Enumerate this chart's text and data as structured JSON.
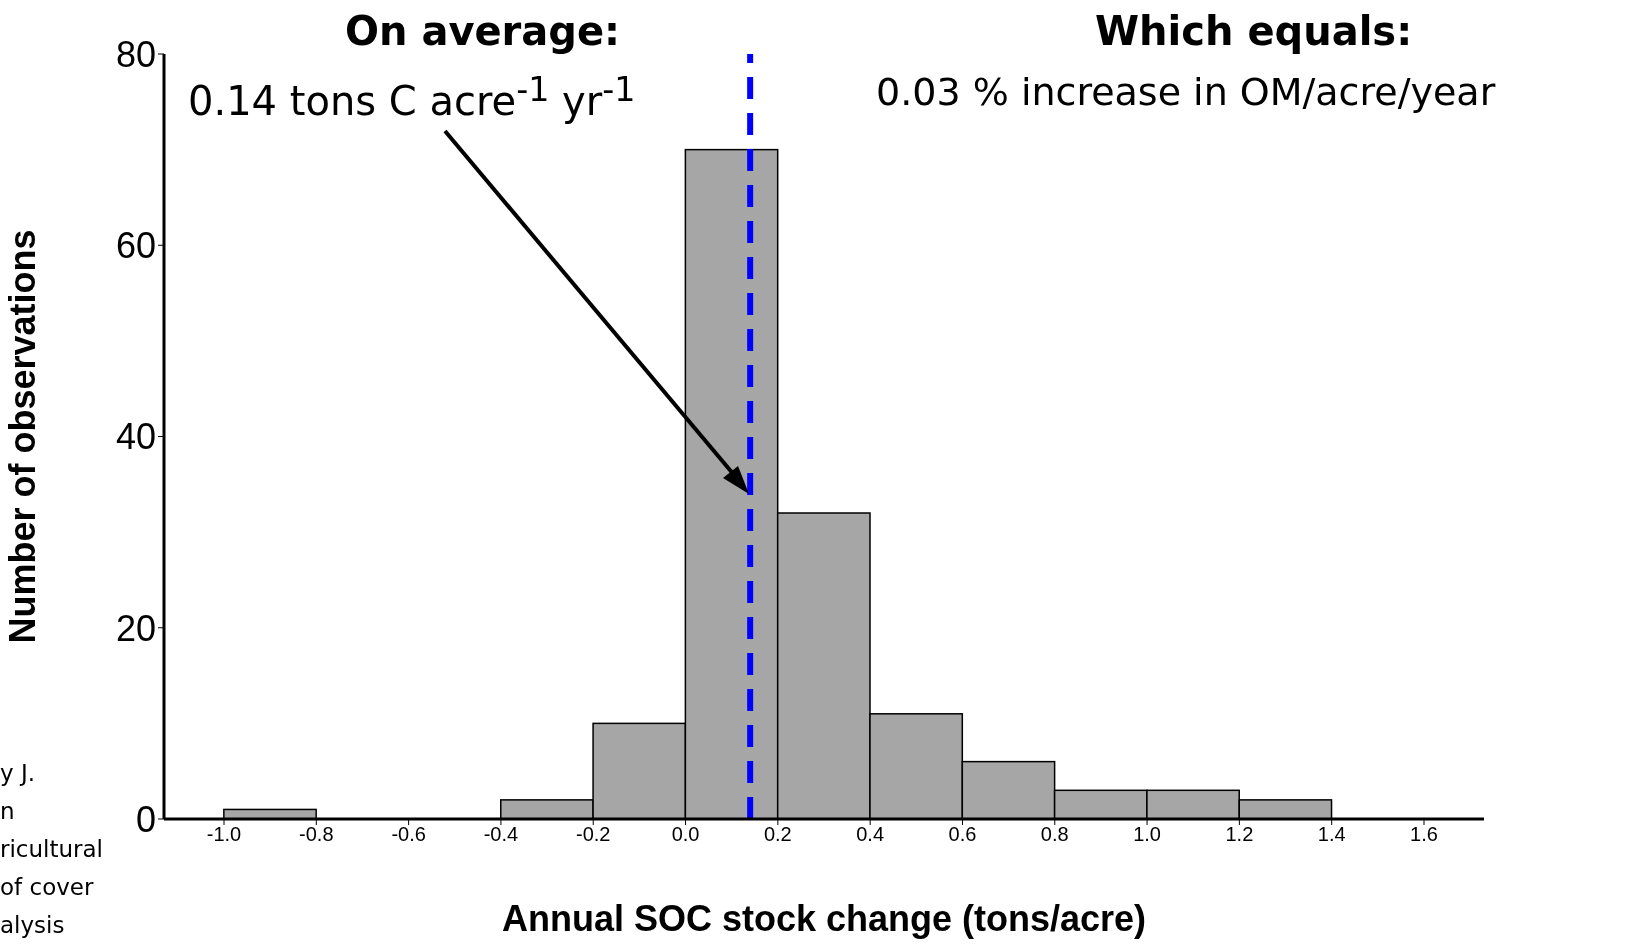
{
  "chart_data": {
    "type": "histogram",
    "xlabel": "Annual SOC stock change (tons/acre)",
    "ylabel": "Number of observations",
    "bins": [
      -1.0,
      -0.8,
      -0.6,
      -0.4,
      -0.2,
      0.0,
      0.2,
      0.4,
      0.6,
      0.8,
      1.0,
      1.2,
      1.4
    ],
    "values": [
      1,
      0,
      0,
      2,
      10,
      70,
      32,
      11,
      6,
      3,
      3,
      2
    ],
    "color": "#a6a6a6",
    "xlim": [
      -1.13,
      1.73
    ],
    "xticks": [
      {
        "value": -1,
        "label": "-1.0"
      },
      -0.8,
      -0.6,
      -0.4,
      -0.2,
      {
        "value": 0,
        "label": "0.0"
      },
      0.2,
      0.4,
      0.6,
      0.8,
      {
        "value": 1,
        "label": "1.0"
      },
      1.2,
      1.4,
      1.6
    ],
    "ylim": [
      0,
      80
    ],
    "yticks": [
      0,
      20,
      40,
      60,
      80
    ],
    "ref_lines": [
      {
        "axis": "x",
        "value": 0.14,
        "color": "#0000ff",
        "line_style": "dashed"
      }
    ],
    "annotations": [
      "On average:",
      "0.14 tons C acre$^{-1}$ yr$^{-1}$",
      "Which equals:",
      "0.03 % increase in OM/acre/year",
      "y J.",
      "n",
      "ricultural",
      "of cover",
      "alysis"
    ]
  }
}
